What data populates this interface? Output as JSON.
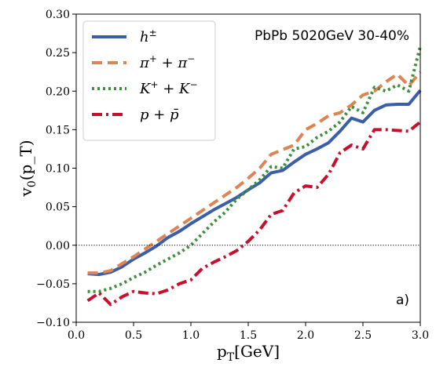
{
  "chart_data": {
    "type": "line",
    "xlabel": "p_T[GeV]",
    "ylabel": "v_0(p_T)",
    "xlim": [
      0.0,
      3.0
    ],
    "ylim": [
      -0.1,
      0.3
    ],
    "xticks": [
      0.0,
      0.5,
      1.0,
      1.5,
      2.0,
      2.5,
      3.0
    ],
    "xtick_labels": [
      "0.0",
      "0.5",
      "1.0",
      "1.5",
      "2.0",
      "2.5",
      "3.0"
    ],
    "yticks": [
      -0.1,
      -0.05,
      0.0,
      0.05,
      0.1,
      0.15,
      0.2,
      0.25,
      0.3
    ],
    "ytick_labels": [
      "−0.10",
      "−0.05",
      "0.00",
      "0.05",
      "0.10",
      "0.15",
      "0.20",
      "0.25",
      "0.30"
    ],
    "grid": false,
    "legend_position": "top-left",
    "annotations": {
      "system": "PbPb 5020GeV 30-40%",
      "panel": "a)"
    },
    "reference_line": {
      "y": 0.0,
      "style": "dotted",
      "color": "#000000"
    },
    "x": [
      0.1,
      0.2,
      0.3,
      0.4,
      0.5,
      0.6,
      0.7,
      0.8,
      0.9,
      1.0,
      1.1,
      1.2,
      1.3,
      1.4,
      1.5,
      1.6,
      1.7,
      1.8,
      1.9,
      2.0,
      2.1,
      2.2,
      2.3,
      2.4,
      2.5,
      2.6,
      2.7,
      2.8,
      2.9,
      3.0
    ],
    "series": [
      {
        "name": "h^±",
        "color": "#3a5fa8",
        "dash": "solid",
        "values": [
          -0.037,
          -0.038,
          -0.035,
          -0.028,
          -0.018,
          -0.01,
          -0.001,
          0.01,
          0.018,
          0.028,
          0.037,
          0.046,
          0.054,
          0.062,
          0.072,
          0.081,
          0.094,
          0.097,
          0.108,
          0.118,
          0.125,
          0.133,
          0.148,
          0.165,
          0.16,
          0.175,
          0.182,
          0.183,
          0.183,
          0.201
        ]
      },
      {
        "name": "π^+ + π^−",
        "color": "#dd8452",
        "dash": "dashed",
        "values": [
          -0.036,
          -0.036,
          -0.033,
          -0.024,
          -0.015,
          -0.005,
          0.005,
          0.015,
          0.025,
          0.035,
          0.045,
          0.055,
          0.065,
          0.075,
          0.087,
          0.1,
          0.118,
          0.124,
          0.13,
          0.15,
          0.158,
          0.168,
          0.172,
          0.182,
          0.195,
          0.2,
          0.212,
          0.222,
          0.207,
          0.225
        ]
      },
      {
        "name": "K^+ + K^−",
        "color": "#3f8f3f",
        "dash": "dotted",
        "values": [
          -0.06,
          -0.06,
          -0.056,
          -0.05,
          -0.042,
          -0.035,
          -0.026,
          -0.018,
          -0.01,
          0.0,
          0.015,
          0.03,
          0.043,
          0.06,
          0.072,
          0.085,
          0.102,
          0.1,
          0.125,
          0.128,
          0.14,
          0.148,
          0.16,
          0.18,
          0.172,
          0.205,
          0.2,
          0.208,
          0.2,
          0.258
        ]
      },
      {
        "name": "p + p̄",
        "color": "#c8102e",
        "dash": "dashdot",
        "values": [
          -0.072,
          -0.062,
          -0.077,
          -0.067,
          -0.06,
          -0.062,
          -0.063,
          -0.058,
          -0.05,
          -0.045,
          -0.03,
          -0.022,
          -0.015,
          -0.007,
          0.005,
          0.02,
          0.04,
          0.045,
          0.068,
          0.077,
          0.075,
          0.092,
          0.12,
          0.13,
          0.125,
          0.15,
          0.15,
          0.149,
          0.148,
          0.16
        ]
      }
    ]
  }
}
